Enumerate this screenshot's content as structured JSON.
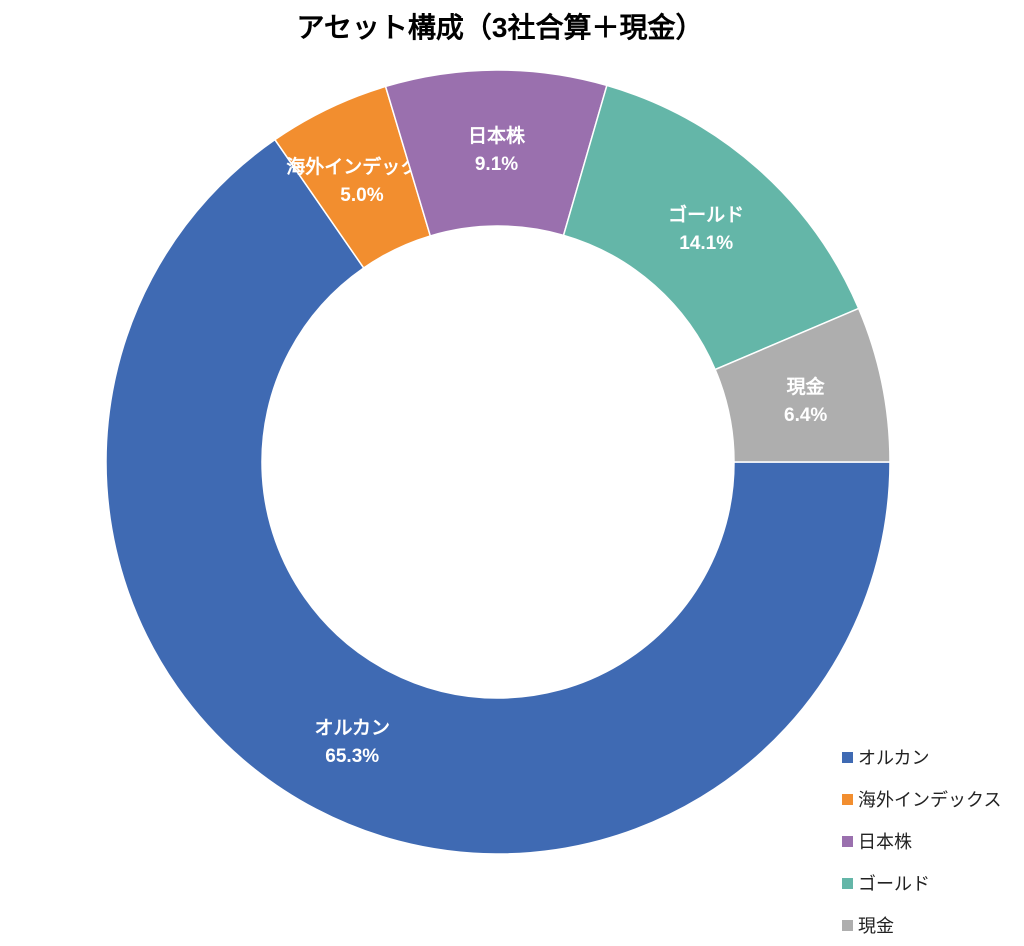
{
  "chart_data": {
    "type": "pie",
    "variant": "donut",
    "title": "アセット構成（3社合算＋現金）",
    "start": "east",
    "direction": "clockwise",
    "categories": [
      "オルカン",
      "海外インデックス",
      "日本株",
      "ゴールド",
      "現金"
    ],
    "values": [
      65.3,
      5.0,
      9.1,
      14.1,
      6.4
    ],
    "labels": [
      "65.3%",
      "5.0%",
      "9.1%",
      "14.1%",
      "6.4%"
    ],
    "colors": [
      "#3F6AB3",
      "#F28E2F",
      "#9A70AE",
      "#64B6A8",
      "#AEAEAE"
    ],
    "legend_position": "bottom-right"
  }
}
